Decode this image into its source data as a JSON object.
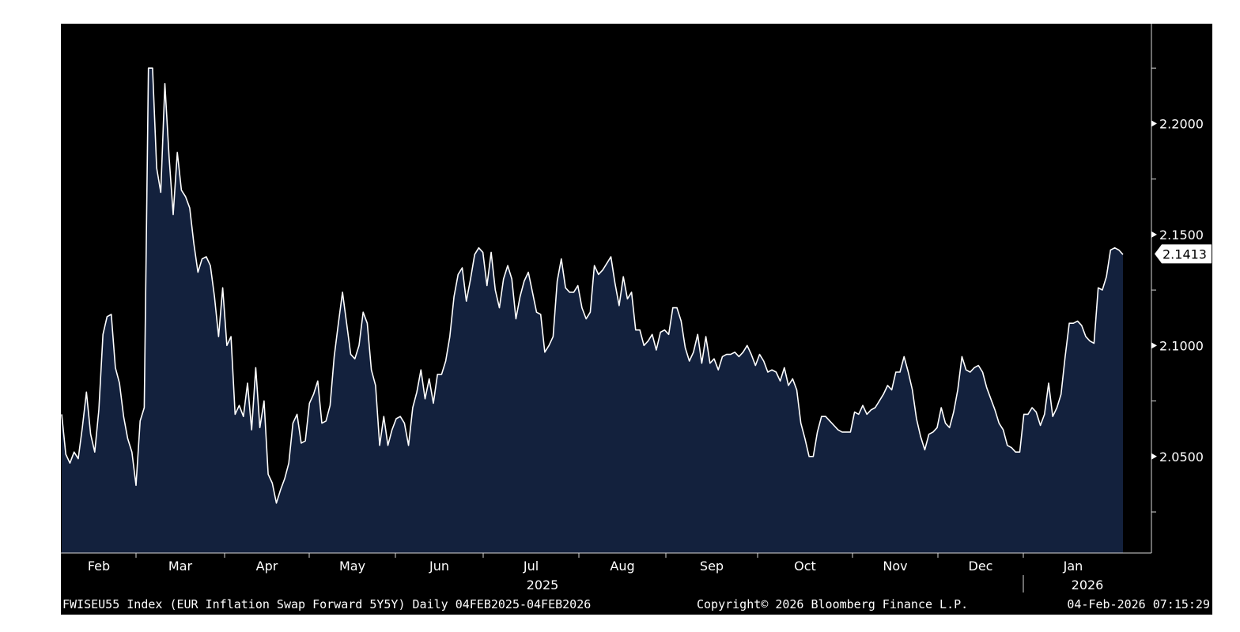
{
  "chart_data": {
    "type": "area",
    "y_ticks": [
      "2.2000",
      "2.1500",
      "2.1000",
      "2.0500"
    ],
    "y_minor_ticks": [
      2.225,
      2.175,
      2.125,
      2.075,
      2.025
    ],
    "ylim": [
      2.0065,
      2.245
    ],
    "last_value_label": "2.1413",
    "months": [
      "Feb",
      "Mar",
      "Apr",
      "May",
      "Jun",
      "Jul",
      "Aug",
      "Sep",
      "Oct",
      "Nov",
      "Dec",
      "Jan"
    ],
    "years": [
      "2025",
      "2026"
    ],
    "series": [
      {
        "values": [
          2.069,
          2.051,
          2.047,
          2.052,
          2.049,
          2.063,
          2.079,
          2.06,
          2.052,
          2.071,
          2.105,
          2.113,
          2.114,
          2.09,
          2.083,
          2.068,
          2.058,
          2.052,
          2.037,
          2.066,
          2.072,
          2.225,
          2.225,
          2.18,
          2.169,
          2.218,
          2.185,
          2.159,
          2.187,
          2.17,
          2.167,
          2.162,
          2.146,
          2.133,
          2.139,
          2.14,
          2.136,
          2.122,
          2.104,
          2.126,
          2.1,
          2.104,
          2.069,
          2.073,
          2.068,
          2.083,
          2.062,
          2.09,
          2.063,
          2.075,
          2.042,
          2.038,
          2.029,
          2.035,
          2.04,
          2.047,
          2.065,
          2.069,
          2.056,
          2.057,
          2.074,
          2.078,
          2.084,
          2.065,
          2.066,
          2.073,
          2.095,
          2.11,
          2.124,
          2.11,
          2.096,
          2.094,
          2.1,
          2.115,
          2.11,
          2.089,
          2.082,
          2.055,
          2.068,
          2.055,
          2.062,
          2.067,
          2.068,
          2.065,
          2.055,
          2.072,
          2.079,
          2.089,
          2.076,
          2.085,
          2.074,
          2.087,
          2.087,
          2.093,
          2.104,
          2.122,
          2.132,
          2.135,
          2.12,
          2.13,
          2.141,
          2.144,
          2.142,
          2.127,
          2.142,
          2.125,
          2.117,
          2.13,
          2.136,
          2.13,
          2.112,
          2.122,
          2.129,
          2.133,
          2.124,
          2.115,
          2.114,
          2.097,
          2.1,
          2.104,
          2.129,
          2.139,
          2.126,
          2.124,
          2.124,
          2.127,
          2.117,
          2.112,
          2.115,
          2.136,
          2.132,
          2.134,
          2.137,
          2.14,
          2.128,
          2.118,
          2.131,
          2.121,
          2.124,
          2.107,
          2.107,
          2.1,
          2.102,
          2.105,
          2.098,
          2.106,
          2.107,
          2.105,
          2.117,
          2.117,
          2.111,
          2.099,
          2.093,
          2.097,
          2.105,
          2.092,
          2.104,
          2.092,
          2.094,
          2.089,
          2.095,
          2.096,
          2.096,
          2.097,
          2.095,
          2.097,
          2.1,
          2.096,
          2.091,
          2.096,
          2.093,
          2.088,
          2.089,
          2.088,
          2.084,
          2.09,
          2.082,
          2.085,
          2.08,
          2.065,
          2.058,
          2.05,
          2.05,
          2.061,
          2.068,
          2.068,
          2.066,
          2.064,
          2.062,
          2.061,
          2.061,
          2.061,
          2.07,
          2.069,
          2.073,
          2.069,
          2.071,
          2.072,
          2.075,
          2.078,
          2.082,
          2.08,
          2.088,
          2.088,
          2.095,
          2.088,
          2.08,
          2.067,
          2.059,
          2.053,
          2.06,
          2.061,
          2.063,
          2.072,
          2.065,
          2.063,
          2.07,
          2.08,
          2.095,
          2.089,
          2.088,
          2.09,
          2.091,
          2.088,
          2.081,
          2.076,
          2.071,
          2.065,
          2.062,
          2.055,
          2.054,
          2.052,
          2.052,
          2.069,
          2.069,
          2.072,
          2.07,
          2.064,
          2.069,
          2.083,
          2.068,
          2.072,
          2.078,
          2.095,
          2.11,
          2.11,
          2.111,
          2.109,
          2.104,
          2.102,
          2.101,
          2.126,
          2.125,
          2.131,
          2.143,
          2.144,
          2.143,
          2.141
        ]
      }
    ]
  },
  "footer": {
    "left": "FWISEU55 Index (EUR Inflation Swap Forward 5Y5Y) Daily 04FEB2025-04FEB2026",
    "center": "Copyright© 2026 Bloomberg Finance L.P.",
    "right": "04-Feb-2026 07:15:29"
  },
  "colors": {
    "background": "#000000",
    "area_fill": "#13213d",
    "line": "#ffffff",
    "text": "#ffffff"
  }
}
